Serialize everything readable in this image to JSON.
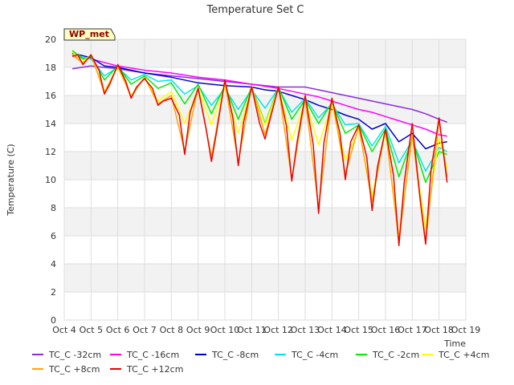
{
  "chart_data": {
    "type": "line",
    "title": "Temperature Set C",
    "xlabel": "Time",
    "ylabel": "Temperature (C)",
    "station_label": "WP_met",
    "ylim": [
      0,
      20
    ],
    "yticks": [
      "0",
      "2",
      "4",
      "6",
      "8",
      "10",
      "12",
      "14",
      "16",
      "18",
      "20"
    ],
    "xlim": [
      4,
      19
    ],
    "xticks": [
      "Oct 4",
      "Oct 5",
      "Oct 6",
      "Oct 7",
      "Oct 8",
      "Oct 9",
      "Oct 10",
      "Oct 11",
      "Oct 12",
      "Oct 13",
      "Oct 14",
      "Oct 15",
      "Oct 16",
      "Oct 17",
      "Oct 18",
      "Oct 19"
    ],
    "grid": true,
    "legend_position": "bottom",
    "series": [
      {
        "name": "TC_C -32cm",
        "color": "#8a2be2",
        "x": [
          4.3,
          5,
          6,
          7,
          8,
          9,
          10,
          11,
          12,
          12.5,
          13,
          13.5,
          14,
          14.5,
          15,
          15.5,
          16,
          16.5,
          17,
          17.5,
          18,
          18.3
        ],
        "y": [
          17.9,
          18.1,
          17.9,
          17.6,
          17.4,
          17.2,
          17.0,
          16.8,
          16.6,
          16.6,
          16.6,
          16.4,
          16.2,
          16.0,
          15.8,
          15.6,
          15.4,
          15.2,
          15.0,
          14.7,
          14.3,
          14.1
        ]
      },
      {
        "name": "TC_C -16cm",
        "color": "#ff00ff",
        "x": [
          4.3,
          5,
          6,
          7,
          8,
          9,
          10,
          11,
          12,
          12.5,
          13,
          13.5,
          14,
          14.5,
          15,
          15.5,
          16,
          16.5,
          17,
          17.5,
          18,
          18.3
        ],
        "y": [
          18.8,
          18.6,
          18.1,
          17.8,
          17.6,
          17.3,
          17.1,
          16.8,
          16.5,
          16.3,
          16.1,
          15.9,
          15.6,
          15.3,
          15.0,
          14.8,
          14.5,
          14.2,
          13.9,
          13.6,
          13.2,
          13.1
        ]
      },
      {
        "name": "TC_C -8cm",
        "color": "#0000cd",
        "x": [
          4.3,
          5,
          5.5,
          6,
          7,
          8,
          9,
          10,
          11,
          11.5,
          12,
          12.5,
          13,
          13.5,
          14,
          14.5,
          15,
          15.5,
          16,
          16.5,
          17,
          17.5,
          18,
          18.3
        ],
        "y": [
          19.0,
          18.7,
          18.1,
          18.0,
          17.6,
          17.3,
          16.9,
          16.7,
          16.6,
          16.4,
          16.3,
          16.0,
          15.7,
          15.3,
          15.0,
          14.6,
          14.3,
          13.6,
          14.0,
          12.7,
          13.3,
          12.2,
          12.6,
          12.7
        ]
      },
      {
        "name": "TC_C -4cm",
        "color": "#00e5ee",
        "x": [
          4.3,
          4.7,
          5,
          5.5,
          6,
          6.5,
          7,
          7.5,
          8,
          8.5,
          9,
          9.5,
          10,
          10.5,
          11,
          11.5,
          12,
          12.5,
          13,
          13.5,
          14,
          14.5,
          15,
          15.5,
          16,
          16.5,
          17,
          17.5,
          18,
          18.3
        ],
        "y": [
          19.1,
          18.7,
          18.6,
          17.4,
          18.0,
          17.1,
          17.5,
          17.0,
          17.1,
          16.1,
          16.7,
          15.3,
          16.5,
          15.0,
          16.4,
          15.1,
          16.5,
          14.8,
          15.8,
          14.4,
          15.4,
          13.9,
          14.0,
          12.4,
          13.8,
          11.2,
          12.8,
          10.6,
          12.3,
          12.0
        ]
      },
      {
        "name": "TC_C -2cm",
        "color": "#00ee00",
        "x": [
          4.3,
          4.7,
          5,
          5.5,
          6,
          6.5,
          7,
          7.5,
          8,
          8.5,
          9,
          9.5,
          10,
          10.5,
          11,
          11.5,
          12,
          12.5,
          13,
          13.5,
          14,
          14.5,
          15,
          15.5,
          16,
          16.5,
          17,
          17.5,
          18,
          18.3
        ],
        "y": [
          19.2,
          18.6,
          18.8,
          17.1,
          18.1,
          16.8,
          17.4,
          16.5,
          16.9,
          15.4,
          16.8,
          14.7,
          16.7,
          14.3,
          16.6,
          14.0,
          16.6,
          14.3,
          15.7,
          14.0,
          15.5,
          13.3,
          13.9,
          12.0,
          13.6,
          10.2,
          12.9,
          9.8,
          12.0,
          11.8
        ]
      },
      {
        "name": "TC_C +4cm",
        "color": "#ffff00",
        "x": [
          4.3,
          4.7,
          5,
          5.5,
          6,
          6.5,
          7,
          7.5,
          8,
          8.5,
          9,
          9.5,
          10,
          10.5,
          11,
          11.5,
          12,
          12.5,
          13,
          13.5,
          14,
          14.5,
          15,
          15.5,
          16,
          16.5,
          17,
          17.5,
          18,
          18.3
        ],
        "y": [
          19.1,
          18.4,
          18.9,
          16.3,
          18.0,
          16.0,
          17.3,
          15.6,
          16.3,
          14.0,
          16.5,
          13.9,
          16.6,
          13.3,
          16.5,
          13.9,
          16.5,
          12.8,
          15.6,
          12.5,
          15.3,
          11.4,
          13.6,
          8.8,
          13.4,
          6.0,
          13.0,
          6.5,
          13.0,
          10.8
        ]
      },
      {
        "name": "TC_C +8cm",
        "color": "#ffa500",
        "x": [
          4.3,
          4.7,
          5,
          5.5,
          6,
          6.5,
          7,
          7.5,
          8,
          8.5,
          9,
          9.5,
          10,
          10.5,
          11,
          11.5,
          12,
          12.5,
          13,
          13.5,
          14,
          14.5,
          15,
          15.5,
          16,
          16.5,
          17,
          17.5,
          18,
          18.3
        ],
        "y": [
          18.9,
          18.3,
          18.9,
          16.2,
          18.1,
          15.9,
          17.3,
          15.4,
          16.0,
          12.0,
          16.6,
          11.6,
          17.0,
          11.2,
          16.7,
          13.2,
          16.6,
          10.0,
          15.8,
          8.0,
          15.8,
          10.4,
          13.8,
          8.4,
          13.6,
          5.6,
          13.2,
          5.6,
          14.3,
          10.2
        ]
      },
      {
        "name": "TC_C +12cm",
        "color": "#ee0000",
        "x": [
          4.3,
          4.5,
          4.7,
          5,
          5.3,
          5.5,
          5.7,
          6,
          6.3,
          6.5,
          6.7,
          7,
          7.3,
          7.5,
          7.7,
          8,
          8.3,
          8.5,
          8.7,
          9,
          9.3,
          9.5,
          9.7,
          10,
          10.3,
          10.5,
          10.7,
          11,
          11.3,
          11.5,
          11.7,
          12,
          12.3,
          12.5,
          12.7,
          13,
          13.3,
          13.5,
          13.7,
          14,
          14.3,
          14.5,
          14.7,
          15,
          15.3,
          15.5,
          15.7,
          16,
          16.3,
          16.5,
          16.7,
          17,
          17.3,
          17.5,
          17.7,
          18,
          18.3
        ],
        "y": [
          18.8,
          18.9,
          18.2,
          18.9,
          17.8,
          16.1,
          16.8,
          18.2,
          17.0,
          15.8,
          16.6,
          17.2,
          16.5,
          15.3,
          15.6,
          15.8,
          14.6,
          11.8,
          14.8,
          16.5,
          13.6,
          11.3,
          13.5,
          17.1,
          14.4,
          11.0,
          14.1,
          16.6,
          14.0,
          12.9,
          14.4,
          16.6,
          13.8,
          9.9,
          12.7,
          16.0,
          12.5,
          7.6,
          12.6,
          15.8,
          13.3,
          10.0,
          12.7,
          13.9,
          11.6,
          7.8,
          10.9,
          13.6,
          10.3,
          5.3,
          9.8,
          14.0,
          8.5,
          5.4,
          10.7,
          14.4,
          9.8
        ]
      }
    ]
  }
}
